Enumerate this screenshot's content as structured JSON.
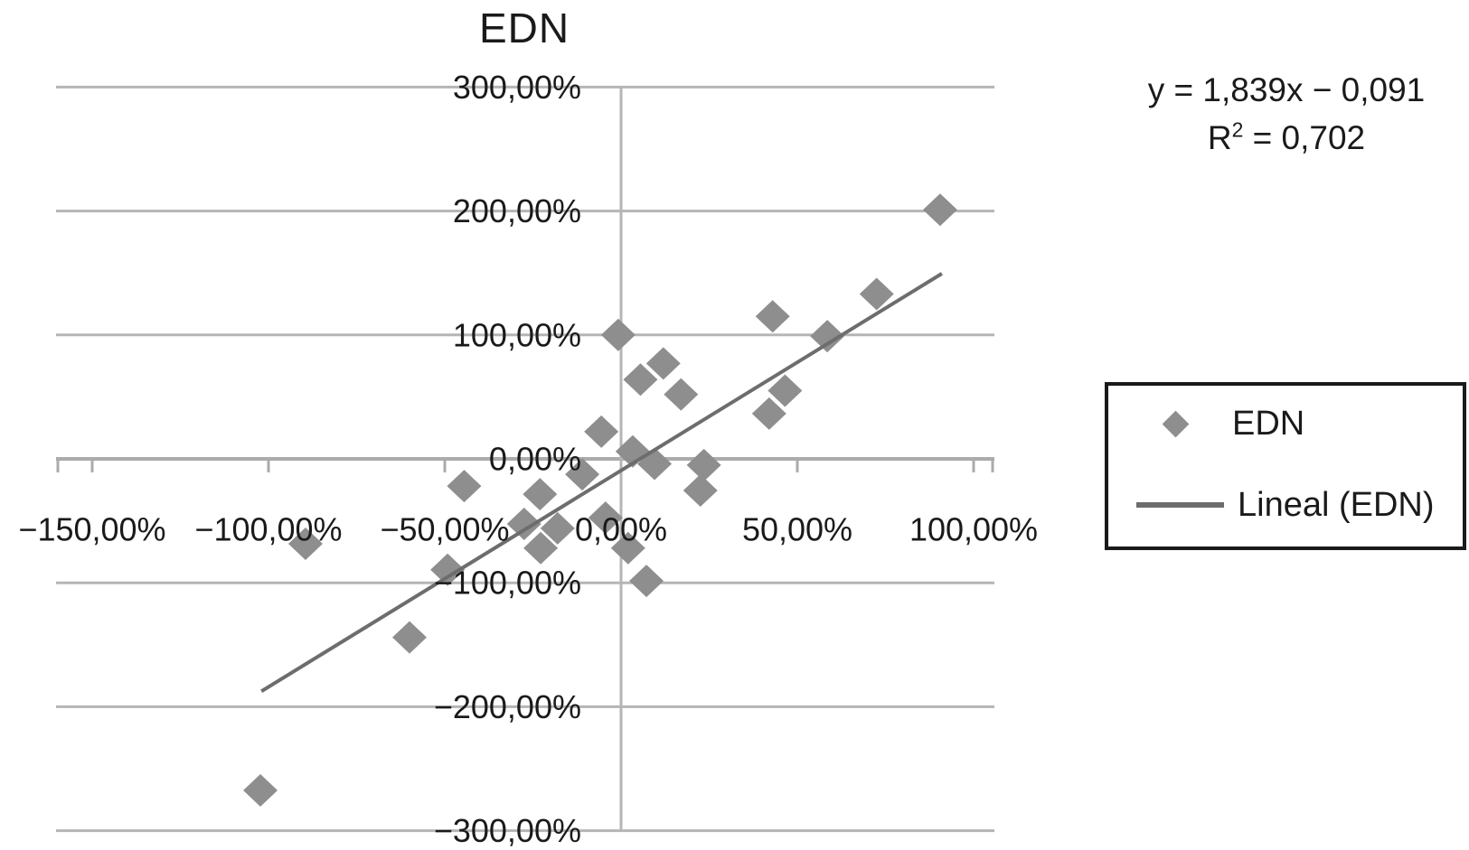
{
  "chart_data": {
    "type": "scatter",
    "title": "EDN",
    "grid": "horizontal-gridlines-plus-zero-vertical",
    "x_axis": {
      "range_pct": [
        -160,
        106
      ],
      "ticks": [
        {
          "value": -150,
          "label": "−150,00%"
        },
        {
          "value": -100,
          "label": "−100,00%"
        },
        {
          "value": -50,
          "label": "−50,00%"
        },
        {
          "value": 0,
          "label": "0,00%"
        },
        {
          "value": 50,
          "label": "50,00%"
        },
        {
          "value": 100,
          "label": "100,00%"
        }
      ]
    },
    "y_axis": {
      "range_pct": [
        -300,
        301
      ],
      "ticks": [
        {
          "value": 300,
          "label": "300,00%"
        },
        {
          "value": 200,
          "label": "200,00%"
        },
        {
          "value": 100,
          "label": "100,00%"
        },
        {
          "value": 0,
          "label": "0,00%"
        },
        {
          "value": -100,
          "label": "−100,00%"
        },
        {
          "value": -200,
          "label": "−200,00%"
        },
        {
          "value": -300,
          "label": "−300,00%"
        }
      ]
    },
    "series": [
      {
        "name": "EDN",
        "marker": "diamond",
        "color": "#8e8e8e",
        "points": [
          [
            90.5,
            201
          ],
          [
            72.5,
            133
          ],
          [
            58.5,
            99
          ],
          [
            43,
            115
          ],
          [
            -0.8,
            100
          ],
          [
            12,
            77
          ],
          [
            5.5,
            64
          ],
          [
            17,
            52
          ],
          [
            46.5,
            55
          ],
          [
            42,
            36.5
          ],
          [
            -5.6,
            22
          ],
          [
            3.3,
            6
          ],
          [
            9.5,
            -4
          ],
          [
            23.5,
            -5
          ],
          [
            22.5,
            -25.5
          ],
          [
            -11,
            -12.5
          ],
          [
            -23,
            -28.5
          ],
          [
            -44.5,
            -22
          ],
          [
            -27.5,
            -52.5
          ],
          [
            -18,
            -56
          ],
          [
            -22.8,
            -72
          ],
          [
            -4.4,
            -47.5
          ],
          [
            2,
            -72
          ],
          [
            7.2,
            -98.5
          ],
          [
            -89.5,
            -68.5
          ],
          [
            -49.2,
            -89.5
          ],
          [
            -60,
            -144
          ],
          [
            -102.3,
            -267.5
          ]
        ]
      }
    ],
    "trendline": {
      "name": "Lineal (EDN)",
      "color": "#6d6d6d",
      "from": [
        -102,
        -187.5
      ],
      "to": [
        91,
        149.5
      ],
      "equation": "y = 1,839x − 0,091",
      "r2_base": "R",
      "r2_sup": "2",
      "r2_rest": " = 0,702"
    },
    "legend": {
      "position": "right",
      "border": true,
      "entries": [
        {
          "label": "EDN",
          "marker": "diamond"
        },
        {
          "label": "Lineal (EDN)",
          "marker": "line"
        }
      ]
    },
    "colors": {
      "marker": "#8e8e8e",
      "trendline": "#6d6d6d",
      "gridline": "#b5b5b5",
      "axis": "#ababab",
      "text": "#1a1a1a",
      "legend_border": "#1a1a1a",
      "background": "#ffffff"
    }
  }
}
